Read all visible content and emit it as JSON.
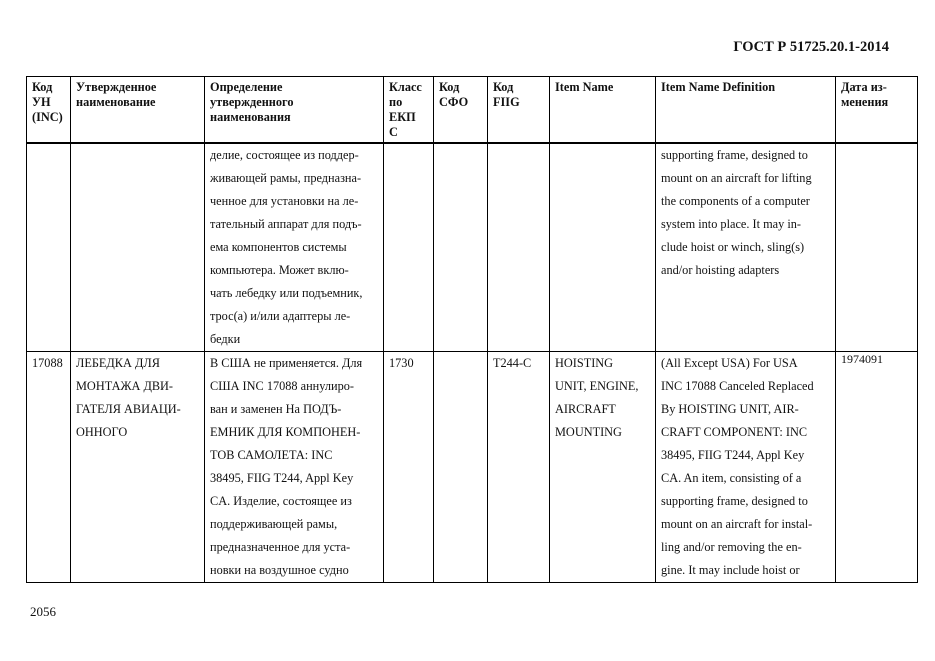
{
  "header": {
    "doc_title": "ГОСТ Р 51725.20.1-2014"
  },
  "table": {
    "columns": [
      "Код\nУН\n(INC)",
      "Утвержденное\nнаименование",
      "Определение\nутвержденного\nнаименования",
      "Класс\nпо\nЕКП\nС",
      "Код\nСФО",
      "Код\nFIIG",
      "Item Name",
      "Item Name Definition",
      "Дата из-\nменения"
    ],
    "rows": [
      [
        "",
        "",
        "делие, состоящее из поддер-\nживающей рамы, предназна-\nченное для установки на ле-\nтательный аппарат для подъ-\nема компонентов системы\nкомпьютера. Может вклю-\nчать лебедку или подъемник,\nтрос(а) и/или адаптеры ле-\nбедки",
        "",
        "",
        "",
        "",
        "supporting frame, designed to\nmount on an aircraft for lifting\nthe components of a computer\nsystem into place. It may in-\nclude hoist or winch, sling(s)\nand/or hoisting adapters",
        ""
      ],
      [
        "17088",
        "ЛЕБЕДКА ДЛЯ\nМОНТАЖА ДВИ-\nГАТЕЛЯ АВИАЦИ-\nОННОГО",
        "В США не применяется. Для\nСША INC 17088 аннулиро-\nван и заменен На ПОДЪ-\nЕМНИК ДЛЯ КОМПОНЕН-\nТОВ САМОЛЕТА: INC\n38495, FIIG T244, Appl Key\nCA. Изделие, состоящее из\nподдерживающей рамы,\nпредназначенное для уста-\nновки на воздушное судно",
        "1730",
        "",
        "T244-C",
        "HOISTING\nUNIT, ENGINE,\nAIRCRAFT\nMOUNTING",
        "(All Except USA) For USA\nINC 17088 Canceled Replaced\nBy HOISTING UNIT, AIR-\nCRAFT COMPONENT: INC\n38495, FIIG T244, Appl Key\nCA. An item, consisting of a\nsupporting frame, designed to\nmount on an aircraft for instal-\nling and/or removing the en-\ngine. It may include hoist or",
        "1974091"
      ]
    ]
  },
  "footer": {
    "page_number": "2056"
  }
}
